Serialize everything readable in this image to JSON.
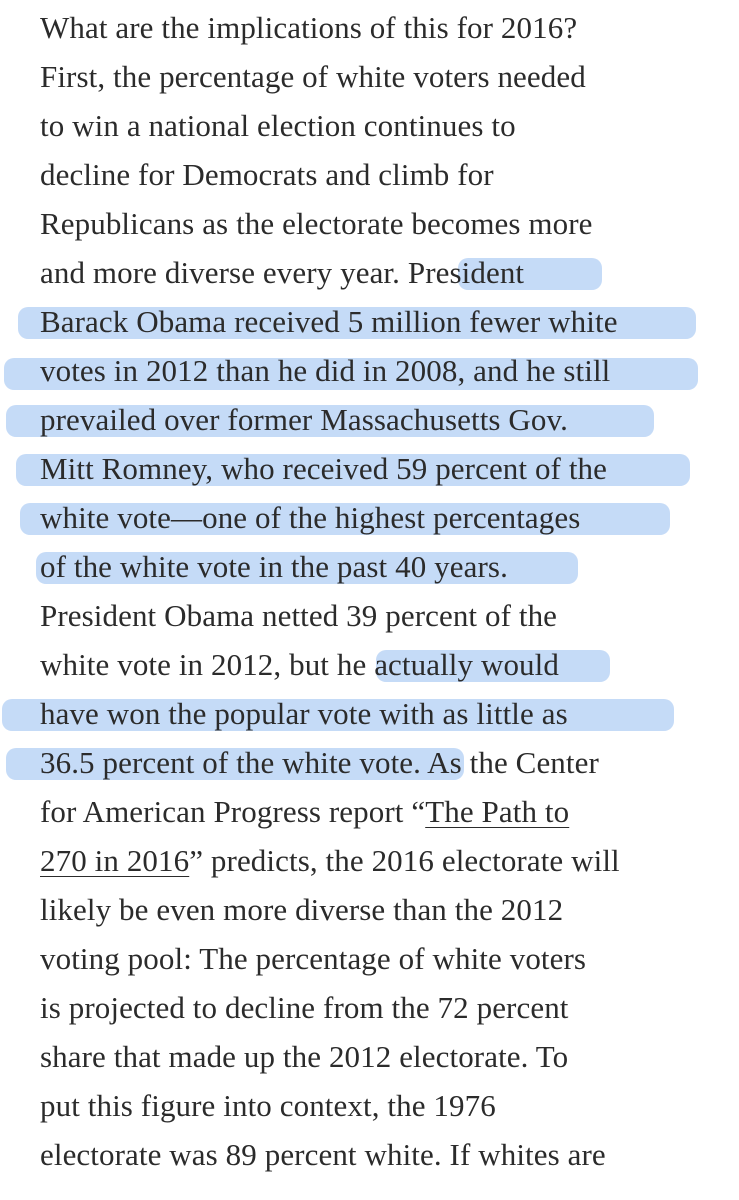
{
  "article": {
    "lines": [
      "What are the implications of this for 2016?",
      "First, the percentage of white voters needed",
      "to win a national election continues to",
      "decline for Democrats and climb for",
      "Republicans as the electorate becomes more",
      "and more diverse every year. ",
      "President",
      "Barack Obama received 5 million fewer white",
      "votes in 2012 than he did in 2008, and he still",
      "prevailed over former Massachusetts Gov.",
      "Mitt Romney, who received 59 percent of the",
      "white vote—one of the highest percentages",
      "of the white vote in the past 40 years",
      ".",
      "President Obama netted 39 percent of the",
      "white vote in 2012, but h",
      "e actually would",
      "have won the popular vote with as little as",
      "36.5 percent of the white vote",
      ". As the Center",
      "for American Progress report “",
      "The Path to",
      "270 in 2016",
      "” predicts, the 2016 electorate will",
      "likely be even more diverse than the 2012",
      "voting pool: The percentage of white voters",
      "is projected to decline from the 72 percent",
      "share that made up the 2012 electorate. To",
      "put this figure into context, the 1976",
      "electorate was 89 percent white. If whites are"
    ],
    "link_text": "The Path to 270 in 2016",
    "highlight_color": "#96bef0",
    "text_color": "#2b2b2b"
  }
}
